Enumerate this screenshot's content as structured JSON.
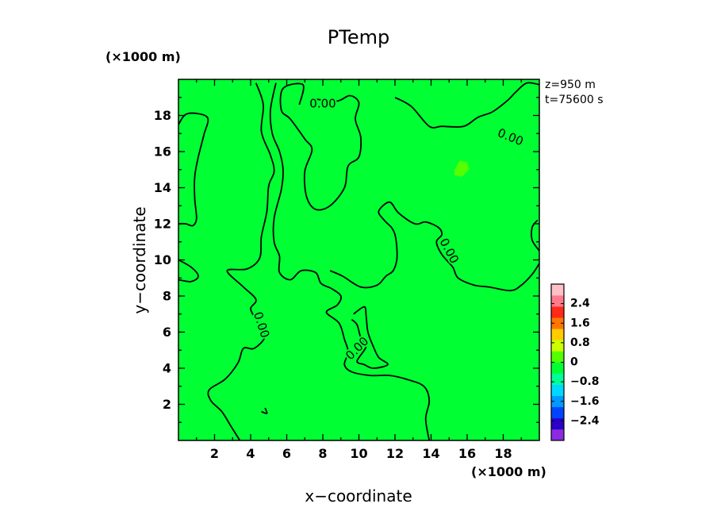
{
  "chart_data": {
    "type": "heatmap",
    "title": "PTemp",
    "xlabel": "x−coordinate",
    "ylabel": "y−coordinate",
    "x_unit": "(×1000 m)",
    "y_unit": "(×1000 m)",
    "xlim": [
      0,
      20
    ],
    "ylim": [
      0,
      20
    ],
    "x_ticks": [
      "2",
      "4",
      "6",
      "8",
      "10",
      "12",
      "14",
      "16",
      "18"
    ],
    "y_ticks": [
      "2",
      "4",
      "6",
      "8",
      "10",
      "12",
      "14",
      "16",
      "18"
    ],
    "info_lines": [
      "z=950 m",
      "t=75600 s"
    ],
    "contour_level": 0.0,
    "contour_labels": [
      "0.00",
      "0.00",
      "0.00",
      "0.00",
      "0.00"
    ],
    "colorbar": {
      "tick_labels": [
        "2.4",
        "1.6",
        "0.8",
        "0",
        "−0.8",
        "−1.6",
        "−2.4"
      ],
      "range": [
        -3.2,
        3.2
      ],
      "colors": [
        "#8a2be2",
        "#2a00c8",
        "#0044ff",
        "#0099ff",
        "#00d8ff",
        "#00ff99",
        "#00ff33",
        "#55ff00",
        "#ccff00",
        "#ffcc00",
        "#ff7700",
        "#ff2a1a",
        "#ff7a8a",
        "#ffc0c8"
      ]
    },
    "field": {
      "positive_region_color": "#55ff00",
      "negative_region_color": "#00ff33"
    },
    "contours": [
      [
        [
          0.0,
          17.5
        ],
        [
          0.5,
          18.1
        ],
        [
          1.6,
          17.9
        ],
        [
          1.4,
          16.9
        ],
        [
          1.1,
          15.7
        ],
        [
          0.9,
          14.6
        ],
        [
          0.9,
          13.4
        ],
        [
          1.0,
          12.3
        ],
        [
          0.8,
          11.9
        ],
        [
          0.4,
          12.0
        ],
        [
          0.0,
          12.0
        ]
      ],
      [
        [
          0.0,
          10.0
        ],
        [
          0.7,
          9.6
        ],
        [
          1.1,
          9.1
        ],
        [
          0.7,
          8.8
        ],
        [
          0.0,
          8.9
        ]
      ],
      [
        [
          4.3,
          19.8
        ],
        [
          4.7,
          18.6
        ],
        [
          4.6,
          17.1
        ],
        [
          5.1,
          15.8
        ],
        [
          5.3,
          14.9
        ],
        [
          5.0,
          14.1
        ],
        [
          4.9,
          12.7
        ],
        [
          4.6,
          11.3
        ],
        [
          4.5,
          10.1
        ],
        [
          3.8,
          9.5
        ],
        [
          2.7,
          9.4
        ],
        [
          3.6,
          8.5
        ],
        [
          4.3,
          7.8
        ],
        [
          4.0,
          7.3
        ],
        [
          4.3,
          6.7
        ],
        [
          4.8,
          5.8
        ],
        [
          4.2,
          5.1
        ],
        [
          3.6,
          5.1
        ],
        [
          3.3,
          4.3
        ],
        [
          2.6,
          3.4
        ],
        [
          1.7,
          2.8
        ],
        [
          1.8,
          2.2
        ],
        [
          2.4,
          1.6
        ],
        [
          2.9,
          0.8
        ],
        [
          3.4,
          0.0
        ]
      ],
      [
        [
          5.4,
          19.8
        ],
        [
          5.1,
          18.3
        ],
        [
          5.2,
          17.0
        ],
        [
          5.6,
          16.0
        ],
        [
          5.8,
          15.0
        ],
        [
          5.7,
          13.9
        ],
        [
          5.3,
          12.3
        ],
        [
          5.3,
          11.0
        ],
        [
          5.6,
          10.2
        ],
        [
          5.6,
          9.3
        ],
        [
          6.2,
          8.9
        ],
        [
          6.8,
          9.4
        ],
        [
          7.6,
          9.3
        ],
        [
          7.9,
          8.7
        ],
        [
          8.5,
          8.4
        ],
        [
          9.0,
          8.0
        ],
        [
          8.8,
          7.5
        ],
        [
          8.2,
          7.1
        ],
        [
          8.9,
          6.5
        ],
        [
          9.2,
          5.6
        ],
        [
          9.4,
          4.9
        ],
        [
          9.2,
          4.2
        ],
        [
          9.6,
          3.8
        ],
        [
          10.6,
          3.6
        ],
        [
          11.7,
          3.6
        ],
        [
          12.6,
          3.4
        ],
        [
          13.6,
          3.0
        ],
        [
          13.9,
          2.2
        ],
        [
          13.7,
          1.2
        ],
        [
          13.9,
          0.0
        ]
      ],
      [
        [
          6.7,
          18.6
        ],
        [
          6.9,
          19.7
        ],
        [
          5.8,
          19.5
        ],
        [
          5.7,
          18.3
        ],
        [
          6.2,
          17.8
        ],
        [
          7.0,
          16.7
        ],
        [
          7.4,
          16.1
        ],
        [
          7.0,
          14.9
        ],
        [
          7.1,
          13.5
        ],
        [
          7.6,
          12.8
        ],
        [
          8.4,
          13.0
        ],
        [
          9.2,
          14.0
        ],
        [
          9.4,
          15.2
        ],
        [
          10.0,
          15.7
        ],
        [
          10.1,
          16.8
        ],
        [
          9.8,
          17.8
        ],
        [
          10.0,
          18.7
        ],
        [
          9.5,
          19.1
        ],
        [
          8.8,
          18.8
        ],
        [
          7.6,
          18.9
        ]
      ],
      [
        [
          12.0,
          19.0
        ],
        [
          12.9,
          18.5
        ],
        [
          13.9,
          17.4
        ],
        [
          14.6,
          17.4
        ],
        [
          15.8,
          17.4
        ],
        [
          16.6,
          17.9
        ],
        [
          17.4,
          18.2
        ],
        [
          18.2,
          18.8
        ],
        [
          18.7,
          19.3
        ],
        [
          19.3,
          19.8
        ],
        [
          20.0,
          19.7
        ]
      ],
      [
        [
          8.4,
          9.4
        ],
        [
          9.1,
          9.1
        ],
        [
          10.1,
          8.5
        ],
        [
          11.0,
          8.6
        ],
        [
          11.5,
          9.1
        ],
        [
          11.9,
          9.4
        ],
        [
          12.1,
          10.0
        ],
        [
          12.1,
          10.7
        ],
        [
          12.0,
          11.4
        ],
        [
          11.8,
          11.8
        ],
        [
          11.4,
          12.2
        ],
        [
          11.1,
          12.7
        ],
        [
          11.7,
          13.2
        ],
        [
          12.2,
          12.6
        ],
        [
          13.1,
          12.0
        ],
        [
          13.7,
          12.1
        ],
        [
          14.4,
          11.8
        ],
        [
          14.6,
          11.4
        ],
        [
          14.3,
          11.0
        ],
        [
          14.6,
          10.3
        ],
        [
          15.2,
          9.6
        ],
        [
          15.5,
          9.0
        ],
        [
          16.4,
          8.6
        ],
        [
          17.2,
          8.5
        ],
        [
          18.4,
          8.3
        ],
        [
          19.0,
          8.6
        ],
        [
          19.6,
          9.2
        ],
        [
          20.0,
          9.8
        ]
      ],
      [
        [
          19.9,
          12.2
        ],
        [
          19.6,
          11.8
        ],
        [
          19.6,
          11.1
        ],
        [
          20.0,
          10.5
        ]
      ],
      [
        [
          9.7,
          7.0
        ],
        [
          10.3,
          7.4
        ],
        [
          10.4,
          6.9
        ],
        [
          10.5,
          6.0
        ],
        [
          10.8,
          5.2
        ],
        [
          11.1,
          4.6
        ],
        [
          11.6,
          4.2
        ],
        [
          10.8,
          4.0
        ],
        [
          10.3,
          4.2
        ],
        [
          9.9,
          4.4
        ],
        [
          10.4,
          5.2
        ],
        [
          10.1,
          5.7
        ],
        [
          9.9,
          6.4
        ],
        [
          9.6,
          6.7
        ]
      ],
      [
        [
          4.6,
          1.6
        ],
        [
          4.9,
          1.5
        ],
        [
          4.8,
          1.8
        ]
      ]
    ],
    "positive_blob": [
      [
        15.3,
        15.0
      ],
      [
        15.6,
        15.5
      ],
      [
        16.0,
        15.4
      ],
      [
        16.1,
        15.0
      ],
      [
        15.7,
        14.6
      ],
      [
        15.3,
        14.7
      ]
    ]
  }
}
